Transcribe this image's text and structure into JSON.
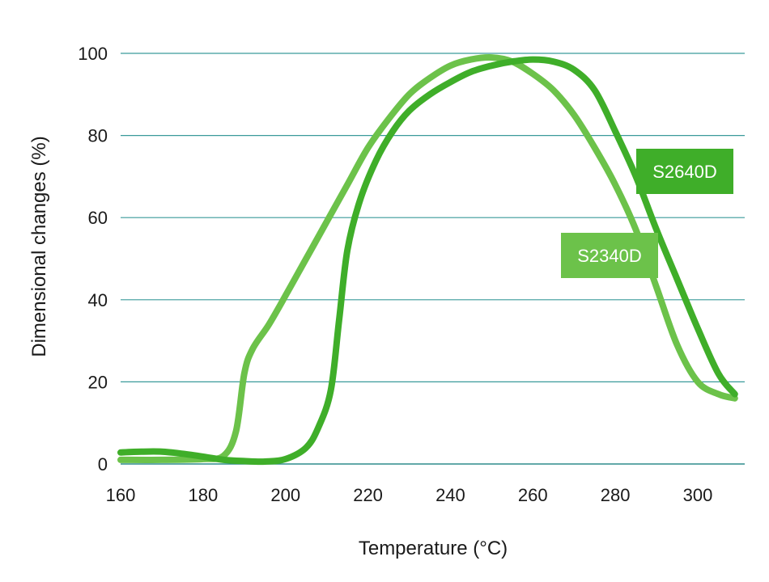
{
  "chart_data": {
    "type": "line",
    "title": "",
    "xlabel": "Temperature (°C)",
    "ylabel": "Dimensional changes (%)",
    "xlim": [
      160,
      310
    ],
    "ylim": [
      0,
      100
    ],
    "x_ticks": [
      160,
      180,
      200,
      220,
      240,
      260,
      280,
      300
    ],
    "y_ticks": [
      0,
      20,
      40,
      60,
      80,
      100
    ],
    "grid": "horizontal",
    "legend": "inline labels",
    "series": [
      {
        "name": "S2340D",
        "color": "#6cc24a",
        "points": [
          [
            160,
            1
          ],
          [
            170,
            1
          ],
          [
            180,
            1.2
          ],
          [
            185,
            2
          ],
          [
            188,
            8
          ],
          [
            190,
            22
          ],
          [
            192,
            28
          ],
          [
            196,
            34
          ],
          [
            200,
            41
          ],
          [
            205,
            50
          ],
          [
            210,
            59
          ],
          [
            215,
            68
          ],
          [
            220,
            77
          ],
          [
            225,
            84
          ],
          [
            230,
            90
          ],
          [
            235,
            94
          ],
          [
            240,
            97
          ],
          [
            245,
            98.5
          ],
          [
            250,
            99
          ],
          [
            255,
            98
          ],
          [
            260,
            95
          ],
          [
            265,
            91
          ],
          [
            270,
            85
          ],
          [
            275,
            77
          ],
          [
            280,
            68
          ],
          [
            285,
            57
          ],
          [
            290,
            43
          ],
          [
            295,
            29
          ],
          [
            300,
            20
          ],
          [
            305,
            17
          ],
          [
            309,
            16
          ]
        ]
      },
      {
        "name": "S2640D",
        "color": "#3fae29",
        "points": [
          [
            160,
            2.8
          ],
          [
            165,
            3
          ],
          [
            170,
            3
          ],
          [
            175,
            2.5
          ],
          [
            180,
            1.8
          ],
          [
            185,
            1
          ],
          [
            190,
            0.7
          ],
          [
            195,
            0.6
          ],
          [
            200,
            1.2
          ],
          [
            205,
            4
          ],
          [
            208,
            9
          ],
          [
            211,
            18
          ],
          [
            213,
            35
          ],
          [
            215,
            52
          ],
          [
            218,
            64
          ],
          [
            222,
            74
          ],
          [
            226,
            81
          ],
          [
            230,
            86
          ],
          [
            235,
            90
          ],
          [
            240,
            93
          ],
          [
            245,
            95.5
          ],
          [
            250,
            97
          ],
          [
            255,
            98
          ],
          [
            260,
            98.5
          ],
          [
            265,
            98
          ],
          [
            270,
            96
          ],
          [
            275,
            91
          ],
          [
            280,
            81
          ],
          [
            285,
            70
          ],
          [
            290,
            57
          ],
          [
            295,
            45
          ],
          [
            300,
            33
          ],
          [
            305,
            22
          ],
          [
            309,
            17
          ]
        ]
      }
    ]
  }
}
